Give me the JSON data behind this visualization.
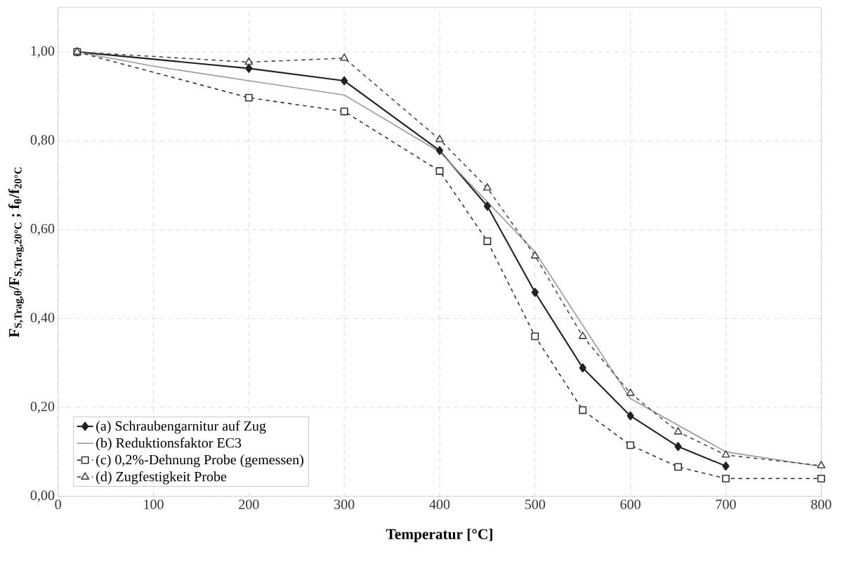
{
  "chart_data": {
    "type": "line",
    "xlabel": "Temperatur [°C]",
    "ylabel": "F$_{S,Trag,θ}$/F$_{S,Trag,20°C}$ ; f$_{θ}$/f$_{20°C}$",
    "xlim": [
      0,
      800
    ],
    "ylim": [
      0,
      1.1
    ],
    "xticks": [
      0,
      100,
      200,
      300,
      400,
      500,
      600,
      700,
      800
    ],
    "yticks": [
      {
        "value": 0,
        "label": "0,00"
      },
      {
        "value": 0.2,
        "label": "0,20"
      },
      {
        "value": 0.4,
        "label": "0,40"
      },
      {
        "value": 0.6,
        "label": "0,60"
      },
      {
        "value": 0.8,
        "label": "0,80"
      },
      {
        "value": 1.0,
        "label": "1,00"
      }
    ],
    "grid": true,
    "legend": "bottom left",
    "series": [
      {
        "name": "(a) Schraubengarnitur auf Zug",
        "color": "#222222",
        "marker": "diamond",
        "line_style": "solid",
        "x": [
          20,
          200,
          300,
          400,
          450,
          500,
          550,
          600,
          650,
          700
        ],
        "values": [
          1.0,
          0.963,
          0.935,
          0.778,
          0.653,
          0.459,
          0.289,
          0.181,
          0.112,
          0.068
        ]
      },
      {
        "name": "(b) Reduktionsfaktor EC3",
        "color": "#999999",
        "marker": "none",
        "line_style": "solid",
        "x": [
          20,
          100,
          200,
          300,
          400,
          500,
          600,
          700,
          800
        ],
        "values": [
          1.0,
          0.968,
          0.935,
          0.903,
          0.775,
          0.55,
          0.22,
          0.1,
          0.067
        ]
      },
      {
        "name": "(c) 0,2%-Dehnung Probe (gemessen)",
        "color": "#333333",
        "marker": "square",
        "line_style": "dashed",
        "x": [
          20,
          200,
          300,
          400,
          450,
          500,
          550,
          600,
          650,
          700,
          800
        ],
        "values": [
          1.0,
          0.897,
          0.866,
          0.732,
          0.574,
          0.36,
          0.194,
          0.115,
          0.066,
          0.04,
          0.04
        ]
      },
      {
        "name": "(d) Zugfestigkeit Probe",
        "color": "#4a4a4a",
        "marker": "triangle",
        "line_style": "dashed",
        "x": [
          20,
          200,
          300,
          400,
          450,
          500,
          550,
          600,
          650,
          700,
          800
        ],
        "values": [
          1.0,
          0.977,
          0.986,
          0.803,
          0.694,
          0.541,
          0.36,
          0.232,
          0.145,
          0.093,
          0.069
        ]
      }
    ]
  }
}
